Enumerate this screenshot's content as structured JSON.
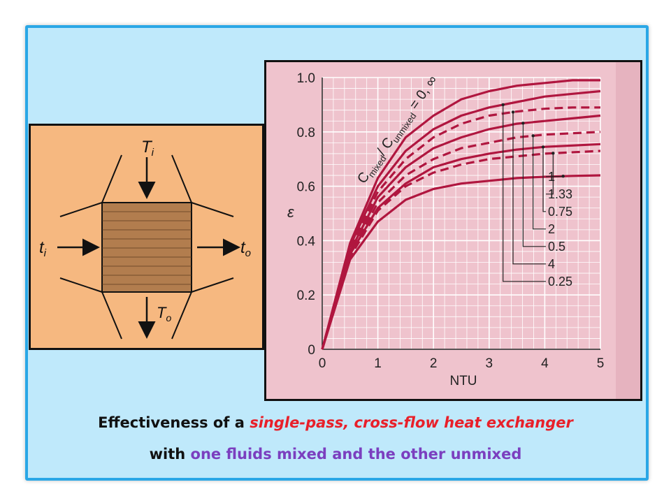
{
  "diagram": {
    "labels": {
      "hot_in": "T",
      "hot_in_sub": "i",
      "hot_out": "T",
      "hot_out_sub": "o",
      "cold_in": "t",
      "cold_in_sub": "i",
      "cold_out": "t",
      "cold_out_sub": "o"
    }
  },
  "chart_data": {
    "type": "line",
    "xlabel": "NTU",
    "ylabel": "ε",
    "xlim": [
      0,
      5
    ],
    "ylim": [
      0,
      1.0
    ],
    "xticks": [
      "0",
      "1",
      "2",
      "3",
      "4",
      "5"
    ],
    "yticks": [
      "0",
      "0.2",
      "0.4",
      "0.6",
      "0.8",
      "1.0"
    ],
    "grid": true,
    "curve_label_main": "C",
    "curve_label_sub1": "mixed",
    "curve_label_slash": "/ C",
    "curve_label_sub2": "unmixed",
    "curve_label_eq": " = 0, ∞",
    "series": [
      {
        "name": "0, ∞",
        "style": "solid",
        "x": [
          0,
          0.5,
          1,
          1.5,
          2,
          2.5,
          3,
          3.5,
          4,
          4.5,
          5
        ],
        "y": [
          0,
          0.39,
          0.63,
          0.78,
          0.86,
          0.92,
          0.95,
          0.97,
          0.98,
          0.99,
          0.99
        ]
      },
      {
        "name": "0.25",
        "style": "solid",
        "x": [
          0,
          0.5,
          1,
          1.5,
          2,
          2.5,
          3,
          3.5,
          4,
          4.5,
          5
        ],
        "y": [
          0,
          0.38,
          0.6,
          0.73,
          0.81,
          0.86,
          0.89,
          0.91,
          0.93,
          0.94,
          0.95
        ]
      },
      {
        "name": "4",
        "style": "dashed",
        "x": [
          0,
          0.5,
          1,
          1.5,
          2,
          2.5,
          3,
          3.5,
          4,
          4.5,
          5
        ],
        "y": [
          0,
          0.37,
          0.58,
          0.7,
          0.78,
          0.83,
          0.86,
          0.875,
          0.885,
          0.89,
          0.89
        ]
      },
      {
        "name": "0.5",
        "style": "solid",
        "x": [
          0,
          0.5,
          1,
          1.5,
          2,
          2.5,
          3,
          3.5,
          4,
          4.5,
          5
        ],
        "y": [
          0,
          0.36,
          0.56,
          0.67,
          0.74,
          0.78,
          0.81,
          0.83,
          0.84,
          0.85,
          0.86
        ]
      },
      {
        "name": "2",
        "style": "dashed",
        "x": [
          0,
          0.5,
          1,
          1.5,
          2,
          2.5,
          3,
          3.5,
          4,
          4.5,
          5
        ],
        "y": [
          0,
          0.35,
          0.54,
          0.64,
          0.7,
          0.74,
          0.76,
          0.78,
          0.79,
          0.795,
          0.8
        ]
      },
      {
        "name": "0.75",
        "style": "solid",
        "x": [
          0,
          0.5,
          1,
          1.5,
          2,
          2.5,
          3,
          3.5,
          4,
          4.5,
          5
        ],
        "y": [
          0,
          0.35,
          0.52,
          0.61,
          0.67,
          0.7,
          0.72,
          0.735,
          0.745,
          0.75,
          0.755
        ]
      },
      {
        "name": "1.33",
        "style": "dashed",
        "x": [
          0,
          0.5,
          1,
          1.5,
          2,
          2.5,
          3,
          3.5,
          4,
          4.5,
          5
        ],
        "y": [
          0,
          0.34,
          0.51,
          0.6,
          0.65,
          0.68,
          0.7,
          0.71,
          0.72,
          0.725,
          0.73
        ]
      },
      {
        "name": "1",
        "style": "solid",
        "x": [
          0,
          0.5,
          1,
          1.5,
          2,
          2.5,
          3,
          3.5,
          4,
          4.5,
          5
        ],
        "y": [
          0,
          0.33,
          0.47,
          0.55,
          0.59,
          0.61,
          0.62,
          0.63,
          0.635,
          0.638,
          0.64
        ]
      }
    ],
    "legend_labels": [
      "1",
      "1.33",
      "0.75",
      "2",
      "0.5",
      "4",
      "0.25"
    ],
    "colors": {
      "curve": "#b0163f",
      "grid": "#ffffff",
      "background": "#efc3cd"
    }
  },
  "caption": {
    "line1_a": "Effectiveness of a ",
    "line1_b": "single-pass, cross-flow heat exchanger",
    "line2_a": "with ",
    "line2_b": "one fluids mixed and the other unmixed"
  }
}
